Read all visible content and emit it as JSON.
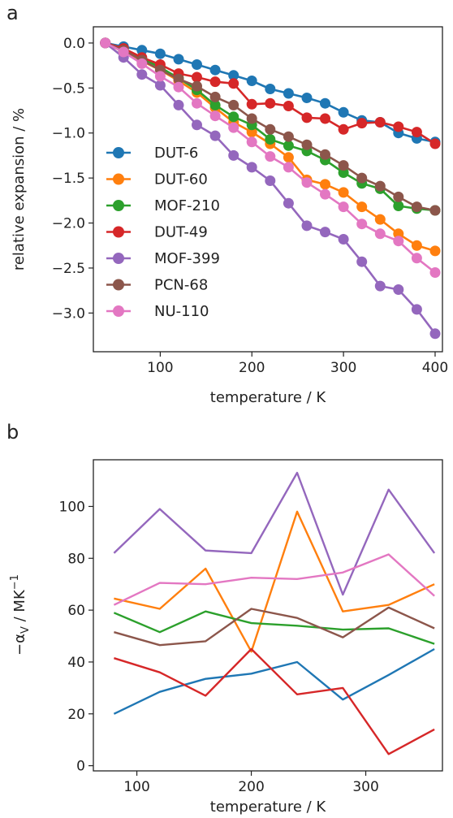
{
  "colors": {
    "DUT-6": "#1f77b4",
    "DUT-60": "#ff7f0e",
    "MOF-210": "#2ca02c",
    "DUT-49": "#d62728",
    "MOF-399": "#9467bd",
    "PCN-68": "#8c564b",
    "NU-110": "#e377c2"
  },
  "chart_data": [
    {
      "panel_label": "a",
      "type": "line",
      "markers": "circle",
      "xlabel": "temperature / K",
      "ylabel": "relative expansion / %",
      "xlim": [
        27,
        408
      ],
      "ylim": [
        -3.43,
        0.18
      ],
      "xticks": [
        100,
        200,
        300,
        400
      ],
      "xtick_labels": [
        "100",
        "200",
        "300",
        "400"
      ],
      "yticks": [
        0.0,
        -0.5,
        -1.0,
        -1.5,
        -2.0,
        -2.5,
        -3.0
      ],
      "ytick_labels": [
        "0.0",
        "−0.5",
        "−1.0",
        "−1.5",
        "−2.0",
        "−2.5",
        "−3.0"
      ],
      "grid": false,
      "legend_position": "lower-left",
      "x": [
        40,
        60,
        80,
        100,
        120,
        140,
        160,
        180,
        200,
        220,
        240,
        260,
        280,
        300,
        320,
        340,
        360,
        380,
        400
      ],
      "series": [
        {
          "name": "DUT-6",
          "values": [
            0.0,
            -0.04,
            -0.08,
            -0.12,
            -0.18,
            -0.24,
            -0.3,
            -0.36,
            -0.42,
            -0.51,
            -0.56,
            -0.61,
            -0.67,
            -0.77,
            -0.86,
            -0.88,
            -1.0,
            -1.06,
            -1.1
          ]
        },
        {
          "name": "DUT-60",
          "values": [
            0.0,
            -0.1,
            -0.2,
            -0.3,
            -0.42,
            -0.55,
            -0.72,
            -0.88,
            -0.99,
            -1.12,
            -1.27,
            -1.52,
            -1.57,
            -1.66,
            -1.82,
            -1.96,
            -2.12,
            -2.25,
            -2.31
          ]
        },
        {
          "name": "MOF-210",
          "values": [
            0.0,
            -0.09,
            -0.17,
            -0.27,
            -0.39,
            -0.52,
            -0.69,
            -0.82,
            -0.91,
            -1.07,
            -1.14,
            -1.2,
            -1.3,
            -1.44,
            -1.56,
            -1.62,
            -1.81,
            -1.84,
            -1.86
          ]
        },
        {
          "name": "DUT-49",
          "values": [
            0.0,
            -0.06,
            -0.16,
            -0.24,
            -0.34,
            -0.38,
            -0.43,
            -0.45,
            -0.68,
            -0.67,
            -0.7,
            -0.83,
            -0.84,
            -0.96,
            -0.89,
            -0.88,
            -0.93,
            -0.99,
            -1.12
          ]
        },
        {
          "name": "MOF-399",
          "values": [
            0.0,
            -0.16,
            -0.35,
            -0.47,
            -0.69,
            -0.91,
            -1.03,
            -1.25,
            -1.38,
            -1.53,
            -1.78,
            -2.03,
            -2.1,
            -2.18,
            -2.43,
            -2.7,
            -2.74,
            -2.96,
            -3.23
          ]
        },
        {
          "name": "PCN-68",
          "values": [
            0.0,
            -0.08,
            -0.19,
            -0.3,
            -0.4,
            -0.48,
            -0.6,
            -0.69,
            -0.84,
            -0.96,
            -1.04,
            -1.13,
            -1.24,
            -1.36,
            -1.5,
            -1.59,
            -1.71,
            -1.82,
            -1.86
          ]
        },
        {
          "name": "NU-110",
          "values": [
            0.0,
            -0.1,
            -0.23,
            -0.37,
            -0.49,
            -0.67,
            -0.81,
            -0.94,
            -1.1,
            -1.26,
            -1.38,
            -1.55,
            -1.68,
            -1.82,
            -2.01,
            -2.12,
            -2.2,
            -2.39,
            -2.55
          ]
        }
      ]
    },
    {
      "panel_label": "b",
      "type": "line",
      "markers": "none",
      "xlabel": "temperature / K",
      "ylabel_main": "−α",
      "ylabel_sub": "V",
      "ylabel_rest": " / MK",
      "ylabel_sup": "−1",
      "xlim": [
        62,
        367
      ],
      "ylim": [
        -2,
        118
      ],
      "xticks": [
        100,
        200,
        300
      ],
      "xtick_labels": [
        "100",
        "200",
        "300"
      ],
      "yticks": [
        0,
        20,
        40,
        60,
        80,
        100
      ],
      "ytick_labels": [
        "0",
        "20",
        "40",
        "60",
        "80",
        "100"
      ],
      "grid": false,
      "x": [
        80,
        120,
        160,
        200,
        240,
        280,
        320,
        360
      ],
      "series": [
        {
          "name": "DUT-6",
          "values": [
            20,
            28.5,
            33.5,
            35.5,
            40,
            25.5,
            35,
            45
          ]
        },
        {
          "name": "DUT-60",
          "values": [
            64.5,
            60.5,
            76,
            44,
            98,
            59.5,
            62,
            70
          ]
        },
        {
          "name": "MOF-210",
          "values": [
            59,
            51.5,
            59.5,
            55,
            54,
            52.5,
            53,
            47
          ]
        },
        {
          "name": "DUT-49",
          "values": [
            41.5,
            36,
            27,
            45,
            27.5,
            30,
            4.5,
            14
          ]
        },
        {
          "name": "MOF-399",
          "values": [
            82,
            99,
            83,
            82,
            113,
            66,
            106.5,
            82
          ]
        },
        {
          "name": "PCN-68",
          "values": [
            51.5,
            46.5,
            48,
            60.5,
            57,
            49.5,
            61,
            53
          ]
        },
        {
          "name": "NU-110",
          "values": [
            62,
            70.5,
            70,
            72.5,
            72,
            74.5,
            81.5,
            65.5
          ]
        }
      ]
    }
  ]
}
